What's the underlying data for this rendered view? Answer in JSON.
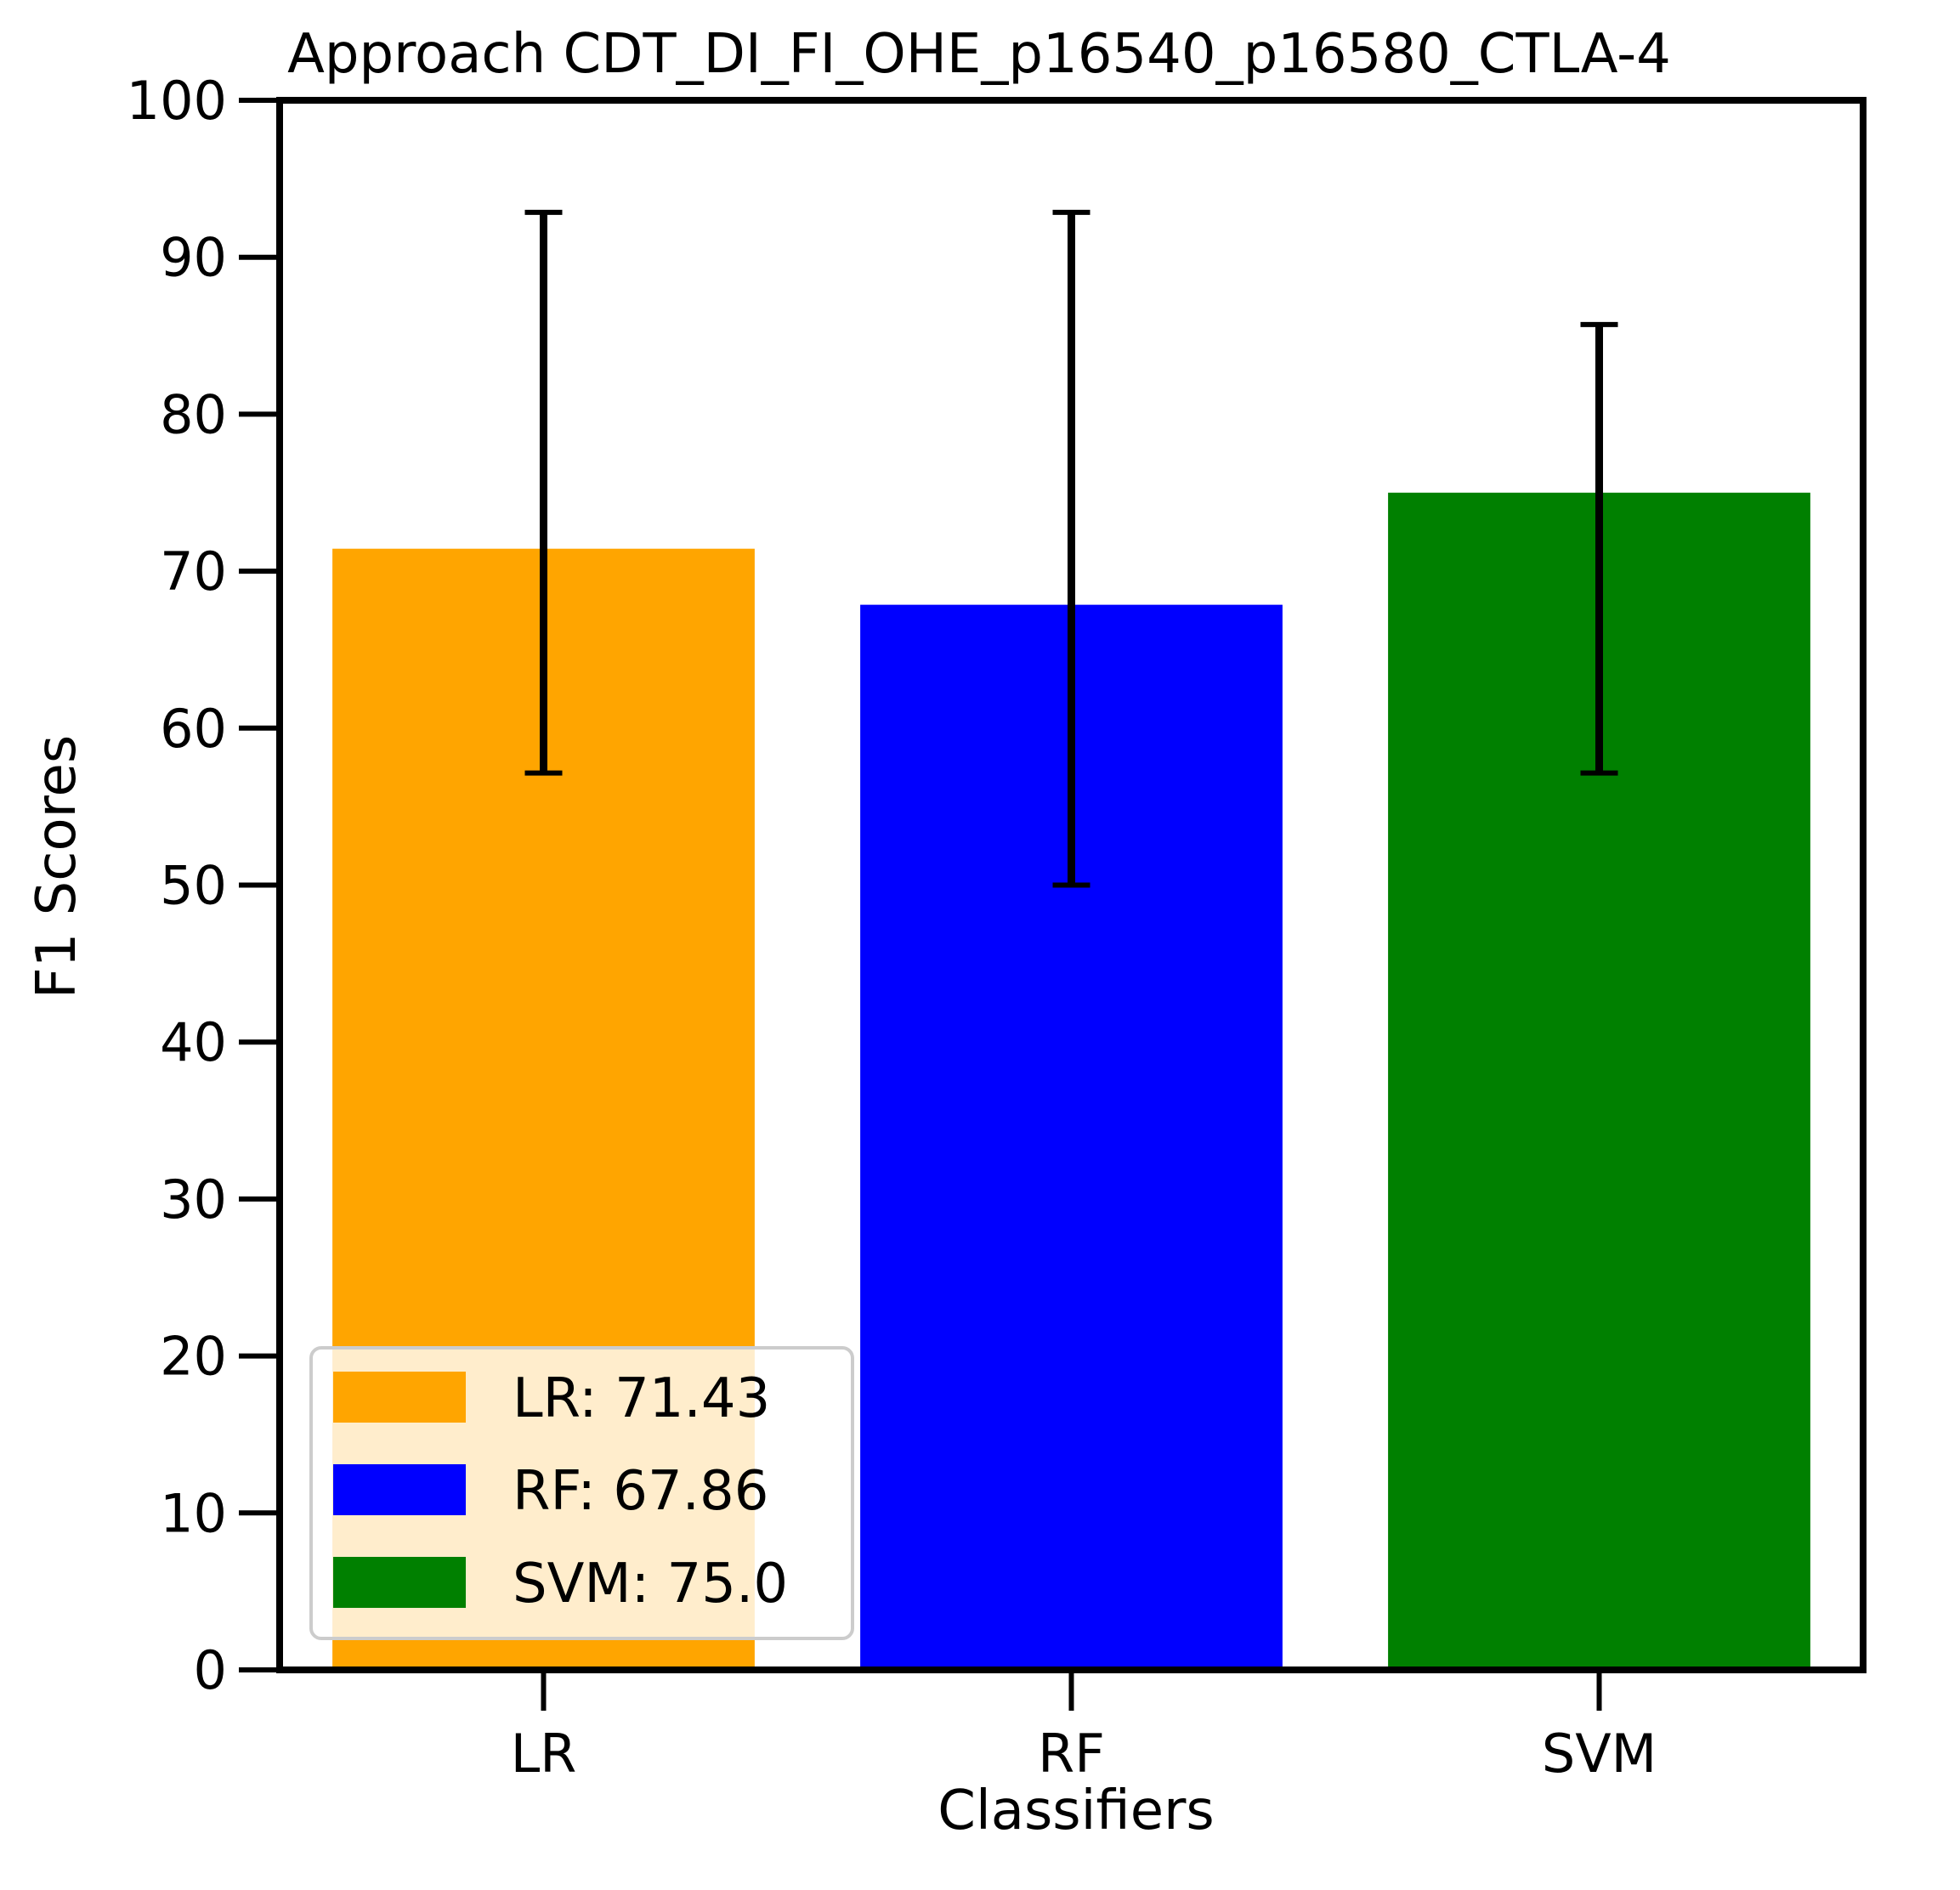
{
  "chart_data": {
    "type": "bar",
    "title": "Approach CDT_DI_FI_OHE_p16540_p16580_CTLA-4",
    "xlabel": "Classifiers",
    "ylabel": "F1 Scores",
    "categories": [
      "LR",
      "RF",
      "SVM"
    ],
    "values": [
      71.43,
      67.86,
      75.0
    ],
    "error_bars": [
      {
        "low": 57.14,
        "high": 92.86
      },
      {
        "low": 50.0,
        "high": 92.86
      },
      {
        "low": 57.14,
        "high": 85.71
      }
    ],
    "colors": [
      "#ffa500",
      "#0000ff",
      "#008000"
    ],
    "ylim": [
      0,
      100
    ],
    "yticks": [
      "0",
      "10",
      "20",
      "30",
      "40",
      "50",
      "60",
      "70",
      "80",
      "90",
      "100"
    ],
    "grid": false,
    "legend": {
      "placement": "lower-left",
      "entries": [
        "LR: 71.43",
        "RF: 67.86",
        "SVM: 75.0"
      ]
    }
  }
}
